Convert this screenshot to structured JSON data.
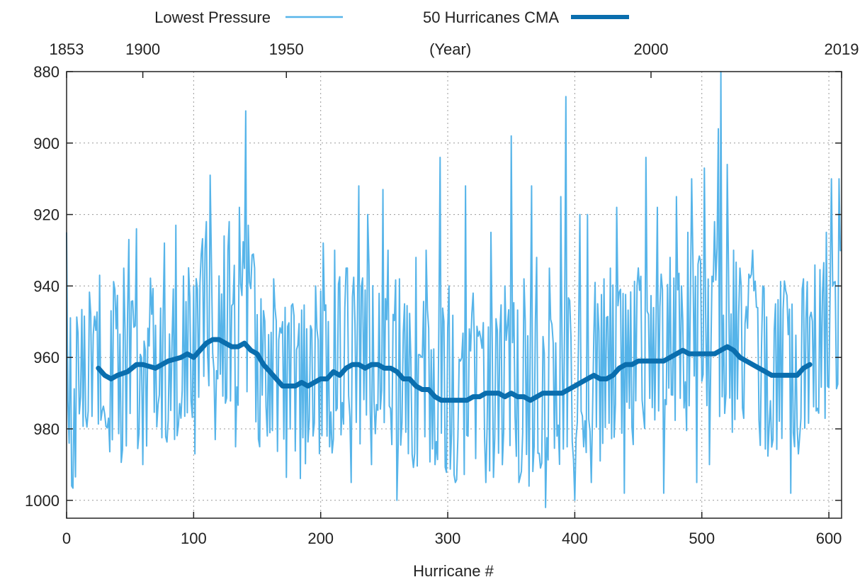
{
  "chart_data": {
    "type": "line",
    "title": "",
    "xlabel": "Hurricane #",
    "ylabel": "",
    "xlim": [
      0,
      610
    ],
    "ylim": [
      1005,
      880
    ],
    "y_axis_inverted": true,
    "grid": true,
    "legend_position": "top",
    "x_ticks": [
      0,
      100,
      200,
      300,
      400,
      500,
      600
    ],
    "y_ticks": [
      880,
      900,
      920,
      940,
      960,
      980,
      1000
    ],
    "top_axis": {
      "label": "(Year)",
      "label_at": 302,
      "ticks": [
        {
          "at": 0,
          "label": "1853"
        },
        {
          "at": 60,
          "label": "1900"
        },
        {
          "at": 173,
          "label": "1950"
        },
        {
          "at": 460,
          "label": "2000"
        },
        {
          "at": 610,
          "label": "2019"
        }
      ]
    },
    "series": [
      {
        "name": "Lowest Pressure",
        "color": "#56b4e9",
        "style": "thin",
        "anchors": [
          [
            0,
            952
          ],
          [
            5,
            985
          ],
          [
            10,
            962
          ],
          [
            20,
            965
          ],
          [
            30,
            962
          ],
          [
            40,
            968
          ],
          [
            50,
            965
          ],
          [
            60,
            970
          ],
          [
            70,
            962
          ],
          [
            80,
            968
          ],
          [
            90,
            960
          ],
          [
            100,
            955
          ],
          [
            110,
            948
          ],
          [
            115,
            945
          ],
          [
            120,
            950
          ],
          [
            130,
            955
          ],
          [
            140,
            950
          ],
          [
            150,
            962
          ],
          [
            160,
            965
          ],
          [
            170,
            968
          ],
          [
            180,
            972
          ],
          [
            190,
            970
          ],
          [
            200,
            968
          ],
          [
            210,
            965
          ],
          [
            220,
            960
          ],
          [
            230,
            962
          ],
          [
            240,
            958
          ],
          [
            250,
            962
          ],
          [
            260,
            965
          ],
          [
            270,
            968
          ],
          [
            280,
            970
          ],
          [
            290,
            972
          ],
          [
            300,
            974
          ],
          [
            310,
            973
          ],
          [
            320,
            972
          ],
          [
            330,
            970
          ],
          [
            340,
            970
          ],
          [
            350,
            970
          ],
          [
            360,
            972
          ],
          [
            370,
            973
          ],
          [
            380,
            970
          ],
          [
            390,
            970
          ],
          [
            400,
            968
          ],
          [
            410,
            965
          ],
          [
            420,
            966
          ],
          [
            430,
            962
          ],
          [
            440,
            960
          ],
          [
            450,
            962
          ],
          [
            460,
            960
          ],
          [
            470,
            960
          ],
          [
            480,
            958
          ],
          [
            490,
            958
          ],
          [
            500,
            956
          ],
          [
            510,
            955
          ],
          [
            520,
            958
          ],
          [
            530,
            962
          ],
          [
            540,
            964
          ],
          [
            550,
            966
          ],
          [
            560,
            965
          ],
          [
            570,
            965
          ],
          [
            580,
            962
          ],
          [
            590,
            960
          ],
          [
            600,
            955
          ],
          [
            610,
            952
          ]
        ],
        "peaks": [
          [
            0,
            925
          ],
          [
            26,
            937
          ],
          [
            33,
            977
          ],
          [
            38,
            941
          ],
          [
            45,
            935
          ],
          [
            49,
            927
          ],
          [
            55,
            924
          ],
          [
            60,
            990
          ],
          [
            70,
            951
          ],
          [
            77,
            928
          ],
          [
            86,
            923
          ],
          [
            90,
            977
          ],
          [
            97,
            943
          ],
          [
            101,
            987
          ],
          [
            110,
            922
          ],
          [
            113,
            909
          ],
          [
            117,
            983
          ],
          [
            124,
            926
          ],
          [
            128,
            922
          ],
          [
            133,
            985
          ],
          [
            136,
            918
          ],
          [
            141,
            891
          ],
          [
            143,
            923
          ],
          [
            148,
            935
          ],
          [
            152,
            985
          ],
          [
            163,
            938
          ],
          [
            170,
            950
          ],
          [
            178,
            945
          ],
          [
            189,
            952
          ],
          [
            196,
            940
          ],
          [
            202,
            928
          ],
          [
            207,
            985
          ],
          [
            211,
            930
          ],
          [
            220,
            935
          ],
          [
            224,
            995
          ],
          [
            230,
            912
          ],
          [
            237,
            920
          ],
          [
            240,
            990
          ],
          [
            249,
            913
          ],
          [
            253,
            930
          ],
          [
            260,
            1000
          ],
          [
            262,
            938
          ],
          [
            266,
            945
          ],
          [
            275,
            932
          ],
          [
            280,
            960
          ],
          [
            283,
            930
          ],
          [
            290,
            990
          ],
          [
            294,
            904
          ],
          [
            301,
            940
          ],
          [
            306,
            995
          ],
          [
            314,
            912
          ],
          [
            320,
            942
          ],
          [
            330,
            995
          ],
          [
            334,
            925
          ],
          [
            345,
            940
          ],
          [
            350,
            898
          ],
          [
            356,
            995
          ],
          [
            360,
            938
          ],
          [
            366,
            912
          ],
          [
            370,
            932
          ],
          [
            377,
            1002
          ],
          [
            380,
            935
          ],
          [
            389,
            915
          ],
          [
            393,
            887
          ],
          [
            400,
            1000
          ],
          [
            404,
            920
          ],
          [
            410,
            920
          ],
          [
            413,
            995
          ],
          [
            423,
            938
          ],
          [
            428,
            935
          ],
          [
            433,
            918
          ],
          [
            439,
            998
          ],
          [
            449,
            940
          ],
          [
            456,
            904
          ],
          [
            465,
            918
          ],
          [
            470,
            998
          ],
          [
            475,
            932
          ],
          [
            480,
            915
          ],
          [
            484,
            940
          ],
          [
            489,
            925
          ],
          [
            492,
            910
          ],
          [
            496,
            995
          ],
          [
            502,
            907
          ],
          [
            506,
            990
          ],
          [
            510,
            922
          ],
          [
            513,
            896
          ],
          [
            515,
            880
          ],
          [
            520,
            906
          ],
          [
            525,
            930
          ],
          [
            530,
            935
          ],
          [
            540,
            930
          ],
          [
            548,
            940
          ],
          [
            558,
            945
          ],
          [
            570,
            998
          ],
          [
            580,
            938
          ],
          [
            590,
            975
          ],
          [
            598,
            925
          ],
          [
            602,
            910
          ],
          [
            608,
            910
          ],
          [
            610,
            930
          ]
        ]
      },
      {
        "name": "50 Hurricanes CMA",
        "color": "#0a6eae",
        "style": "thick",
        "points": [
          [
            25,
            963
          ],
          [
            30,
            965
          ],
          [
            35,
            966
          ],
          [
            40,
            965
          ],
          [
            48,
            964
          ],
          [
            55,
            962
          ],
          [
            60,
            962
          ],
          [
            70,
            963
          ],
          [
            80,
            961
          ],
          [
            90,
            960
          ],
          [
            95,
            959
          ],
          [
            100,
            960
          ],
          [
            105,
            958
          ],
          [
            110,
            956
          ],
          [
            115,
            955
          ],
          [
            120,
            955
          ],
          [
            125,
            956
          ],
          [
            130,
            957
          ],
          [
            135,
            957
          ],
          [
            140,
            956
          ],
          [
            145,
            958
          ],
          [
            150,
            959
          ],
          [
            155,
            962
          ],
          [
            160,
            964
          ],
          [
            165,
            966
          ],
          [
            170,
            968
          ],
          [
            175,
            968
          ],
          [
            180,
            968
          ],
          [
            185,
            967
          ],
          [
            190,
            968
          ],
          [
            195,
            967
          ],
          [
            200,
            966
          ],
          [
            205,
            966
          ],
          [
            210,
            964
          ],
          [
            215,
            965
          ],
          [
            220,
            963
          ],
          [
            225,
            962
          ],
          [
            230,
            962
          ],
          [
            235,
            963
          ],
          [
            240,
            962
          ],
          [
            245,
            962
          ],
          [
            250,
            963
          ],
          [
            255,
            963
          ],
          [
            260,
            964
          ],
          [
            265,
            966
          ],
          [
            270,
            966
          ],
          [
            275,
            968
          ],
          [
            280,
            969
          ],
          [
            285,
            969
          ],
          [
            290,
            971
          ],
          [
            295,
            972
          ],
          [
            300,
            972
          ],
          [
            305,
            972
          ],
          [
            310,
            972
          ],
          [
            315,
            972
          ],
          [
            320,
            971
          ],
          [
            325,
            971
          ],
          [
            330,
            970
          ],
          [
            335,
            970
          ],
          [
            340,
            970
          ],
          [
            345,
            971
          ],
          [
            350,
            970
          ],
          [
            355,
            971
          ],
          [
            360,
            971
          ],
          [
            365,
            972
          ],
          [
            370,
            971
          ],
          [
            375,
            970
          ],
          [
            380,
            970
          ],
          [
            385,
            970
          ],
          [
            390,
            970
          ],
          [
            395,
            969
          ],
          [
            400,
            968
          ],
          [
            405,
            967
          ],
          [
            410,
            966
          ],
          [
            415,
            965
          ],
          [
            420,
            966
          ],
          [
            425,
            966
          ],
          [
            430,
            965
          ],
          [
            435,
            963
          ],
          [
            440,
            962
          ],
          [
            445,
            962
          ],
          [
            450,
            961
          ],
          [
            455,
            961
          ],
          [
            460,
            961
          ],
          [
            465,
            961
          ],
          [
            470,
            961
          ],
          [
            475,
            960
          ],
          [
            480,
            959
          ],
          [
            485,
            958
          ],
          [
            490,
            959
          ],
          [
            495,
            959
          ],
          [
            500,
            959
          ],
          [
            505,
            959
          ],
          [
            510,
            959
          ],
          [
            515,
            958
          ],
          [
            520,
            957
          ],
          [
            525,
            958
          ],
          [
            530,
            960
          ],
          [
            535,
            961
          ],
          [
            540,
            962
          ],
          [
            545,
            963
          ],
          [
            550,
            964
          ],
          [
            555,
            965
          ],
          [
            560,
            965
          ],
          [
            565,
            965
          ],
          [
            570,
            965
          ],
          [
            575,
            965
          ],
          [
            580,
            963
          ],
          [
            585,
            962
          ]
        ]
      }
    ]
  }
}
